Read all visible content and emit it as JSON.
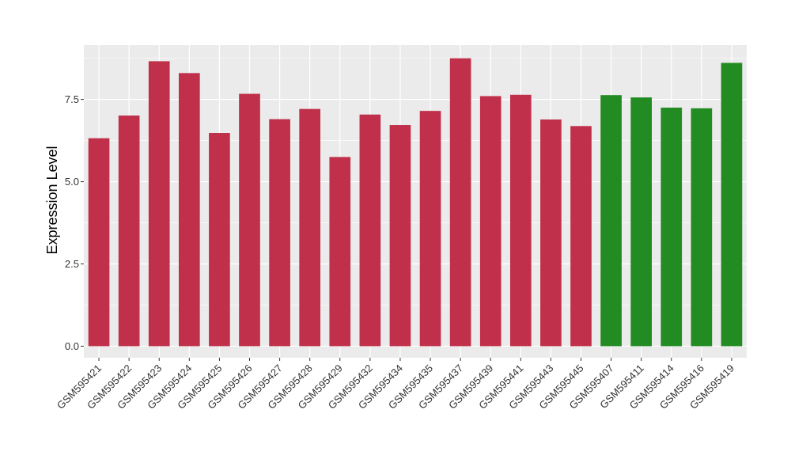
{
  "chart_data": {
    "type": "bar",
    "title": "",
    "xlabel": "",
    "ylabel": "Expression Level",
    "ylim": [
      -0.35,
      9.15
    ],
    "yticks": [
      0.0,
      2.5,
      5.0,
      7.5
    ],
    "ytick_labels": [
      "0.0",
      "2.5",
      "5.0",
      "7.5"
    ],
    "grid": true,
    "panel_background": "#ebebeb",
    "grid_color": "#ffffff",
    "categories": [
      "GSM595421",
      "GSM595422",
      "GSM595423",
      "GSM595424",
      "GSM595425",
      "GSM595426",
      "GSM595427",
      "GSM595428",
      "GSM595429",
      "GSM595432",
      "GSM595434",
      "GSM595435",
      "GSM595437",
      "GSM595439",
      "GSM595441",
      "GSM595443",
      "GSM595445",
      "GSM595407",
      "GSM595411",
      "GSM595414",
      "GSM595416",
      "GSM595419"
    ],
    "values": [
      6.32,
      7.01,
      8.66,
      8.3,
      6.48,
      7.67,
      6.9,
      7.21,
      5.75,
      7.04,
      6.72,
      7.15,
      8.75,
      7.6,
      7.64,
      6.89,
      6.69,
      7.63,
      7.56,
      7.25,
      7.23,
      8.61
    ],
    "colors": [
      "#c0304a",
      "#c0304a",
      "#c0304a",
      "#c0304a",
      "#c0304a",
      "#c0304a",
      "#c0304a",
      "#c0304a",
      "#c0304a",
      "#c0304a",
      "#c0304a",
      "#c0304a",
      "#c0304a",
      "#c0304a",
      "#c0304a",
      "#c0304a",
      "#c0304a",
      "#228b22",
      "#228b22",
      "#228b22",
      "#228b22",
      "#228b22"
    ]
  }
}
